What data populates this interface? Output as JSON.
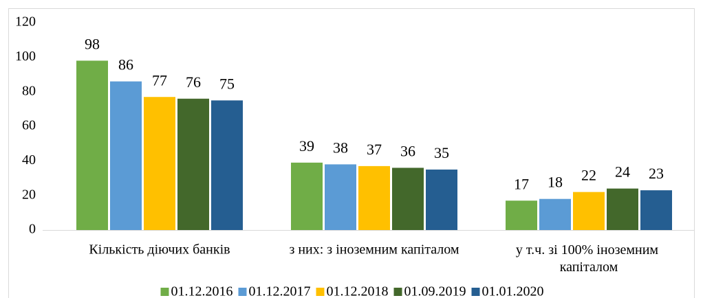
{
  "chart_data": {
    "type": "bar",
    "categories": [
      "Кількість діючих банків",
      "з них: з іноземним капіталом",
      "у т.ч. зі 100% іноземним капіталом"
    ],
    "series": [
      {
        "name": "01.12.2016",
        "color": "#70ad47",
        "values": [
          98,
          39,
          17
        ]
      },
      {
        "name": "01.12.2017",
        "color": "#5b9bd5",
        "values": [
          86,
          38,
          18
        ]
      },
      {
        "name": "01.12.2018",
        "color": "#ffc000",
        "values": [
          77,
          37,
          22
        ]
      },
      {
        "name": "01.09.2019",
        "color": "#43682b",
        "values": [
          76,
          36,
          24
        ]
      },
      {
        "name": "01.01.2020",
        "color": "#255e91",
        "values": [
          75,
          35,
          23
        ]
      }
    ],
    "ylim": [
      0,
      120
    ],
    "yticks": [
      0,
      20,
      40,
      60,
      80,
      100,
      120
    ],
    "grid": false,
    "legend": "bottom"
  }
}
